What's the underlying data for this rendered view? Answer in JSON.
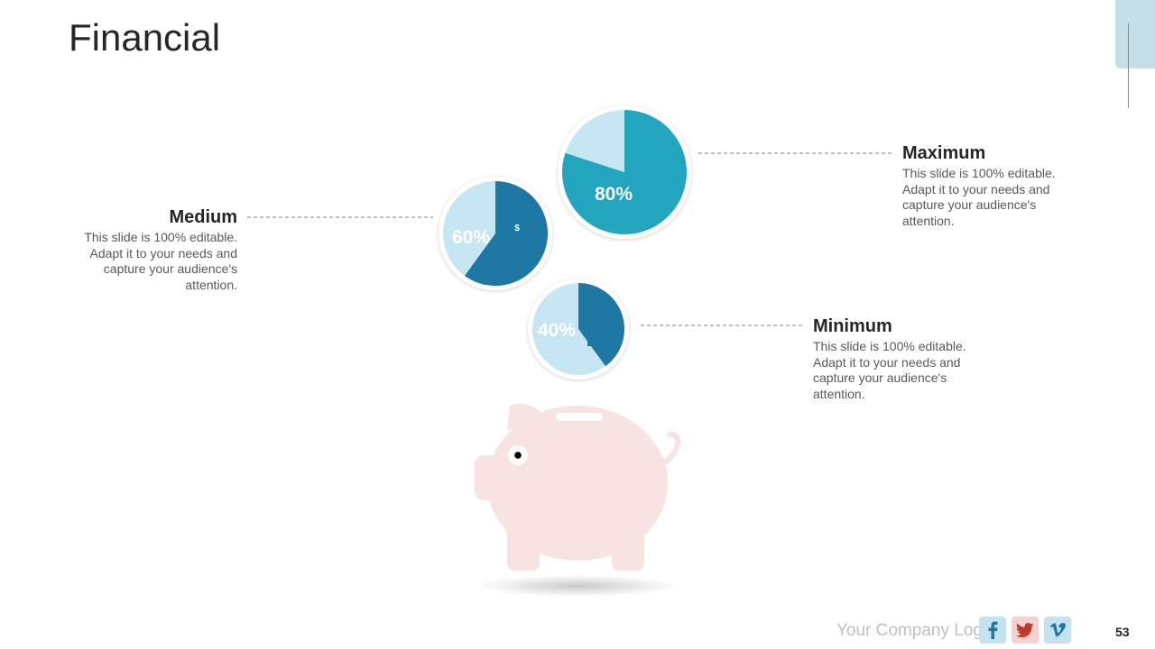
{
  "slide": {
    "title": "Financial",
    "page_number": "53",
    "footer_logo": "Your Company Logo"
  },
  "colors": {
    "teal": "#22a6bf",
    "steel_blue": "#1f77a4",
    "light_blue": "#c7e6f3",
    "piggy_pink": "#f8e3e3"
  },
  "chart_data": [
    {
      "type": "pie",
      "values": [
        80,
        20
      ],
      "data_label": "80%",
      "icon": "hand-coins-icon"
    },
    {
      "type": "pie",
      "values": [
        60,
        40
      ],
      "data_label": "60%",
      "icon": "money-bag-icon"
    },
    {
      "type": "pie",
      "values": [
        40,
        60
      ],
      "data_label": "40%",
      "icon": "growth-chart-icon"
    }
  ],
  "blocks": {
    "maximum": {
      "heading": "Maximum",
      "body": "This slide is 100% editable. Adapt it to your needs and capture your audience's attention."
    },
    "medium": {
      "heading": "Medium",
      "body": "This slide is 100% editable. Adapt it to your needs and capture your audience's attention."
    },
    "minimum": {
      "heading": "Minimum",
      "body": "This slide is 100% editable. Adapt it to your needs and capture your audience's attention."
    }
  },
  "social": {
    "facebook_icon": "facebook-icon",
    "twitter_icon": "twitter-icon",
    "vimeo_icon": "vimeo-icon"
  }
}
